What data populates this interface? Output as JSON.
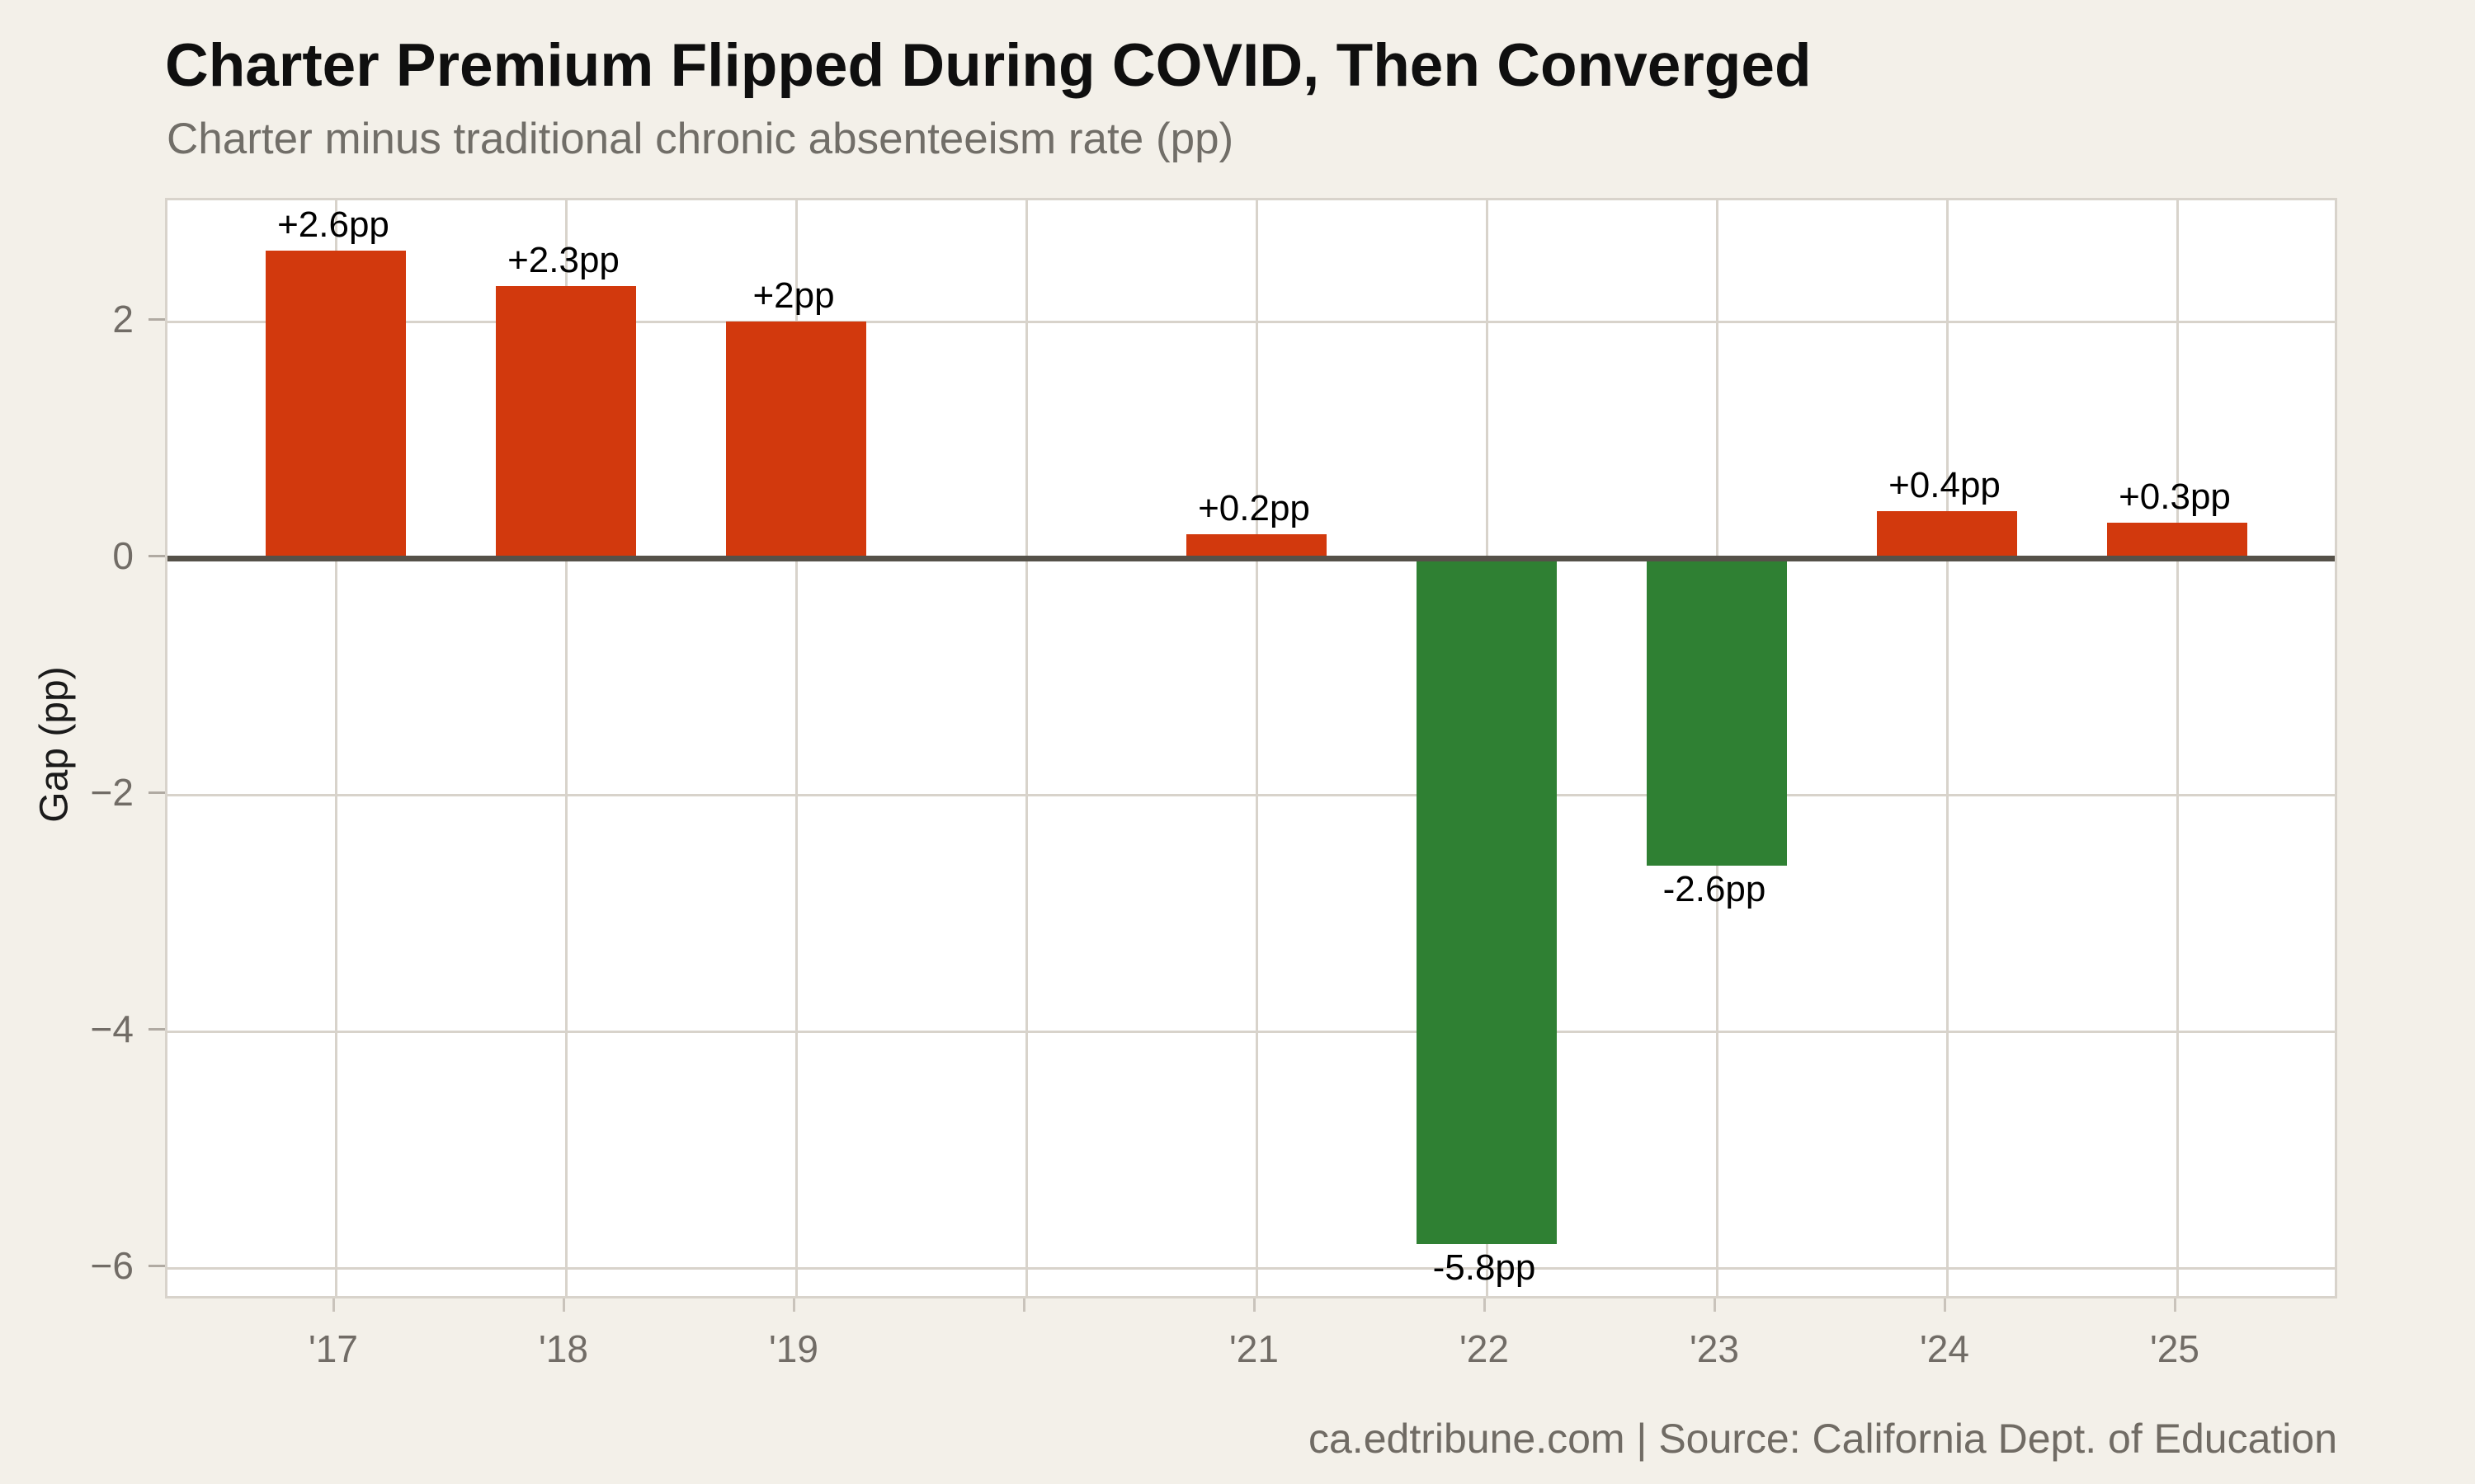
{
  "chart_data": {
    "type": "bar",
    "title": "Charter Premium Flipped During COVID, Then Converged",
    "subtitle": "Charter minus traditional chronic absenteeism rate (pp)",
    "ylabel": "Gap (pp)",
    "footer": "ca.edtribune.com | Source: California Dept. of Education",
    "x_slots": [
      "'17",
      "'18",
      "'19",
      null,
      "'21",
      "'22",
      "'23",
      "'24",
      "'25"
    ],
    "bars": [
      {
        "slot": 0,
        "year": "'17",
        "value": 2.6,
        "label": "+2.6pp"
      },
      {
        "slot": 1,
        "year": "'18",
        "value": 2.3,
        "label": "+2.3pp"
      },
      {
        "slot": 2,
        "year": "'19",
        "value": 2.0,
        "label": "+2pp"
      },
      {
        "slot": 4,
        "year": "'21",
        "value": 0.2,
        "label": "+0.2pp"
      },
      {
        "slot": 5,
        "year": "'22",
        "value": -5.8,
        "label": "-5.8pp"
      },
      {
        "slot": 6,
        "year": "'23",
        "value": -2.6,
        "label": "-2.6pp"
      },
      {
        "slot": 7,
        "year": "'24",
        "value": 0.4,
        "label": "+0.4pp"
      },
      {
        "slot": 8,
        "year": "'25",
        "value": 0.3,
        "label": "+0.3pp"
      }
    ],
    "y_ticks": [
      {
        "value": 2,
        "label": "2"
      },
      {
        "value": 0,
        "label": "0"
      },
      {
        "value": -2,
        "label": "−2"
      },
      {
        "value": -4,
        "label": "−4"
      },
      {
        "value": -6,
        "label": "−6"
      }
    ],
    "y_gridlines": [
      2,
      -2,
      -4,
      -6
    ],
    "ylim": [
      -6.28,
      3.02
    ],
    "grid": true,
    "legend": null,
    "colors": {
      "positive": "#d2390d",
      "negative": "#2f8033",
      "background": "#f3f0e9",
      "plot_background": "#ffffff",
      "gridline": "#d8d3cb",
      "zero_line": "#555149",
      "tick_label": "#716c66",
      "title": "#0f0f0f",
      "subtitle": "#716e68",
      "footer": "#706b64"
    }
  }
}
